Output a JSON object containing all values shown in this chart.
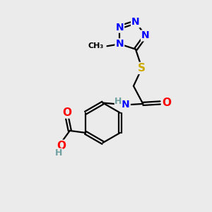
{
  "background_color": "#ebebeb",
  "bond_color": "#000000",
  "atom_colors": {
    "N": "#0000ff",
    "O": "#ff0000",
    "S": "#ccaa00",
    "C": "#000000",
    "H": "#70a0a0"
  },
  "figsize": [
    3.0,
    3.0
  ],
  "dpi": 100
}
